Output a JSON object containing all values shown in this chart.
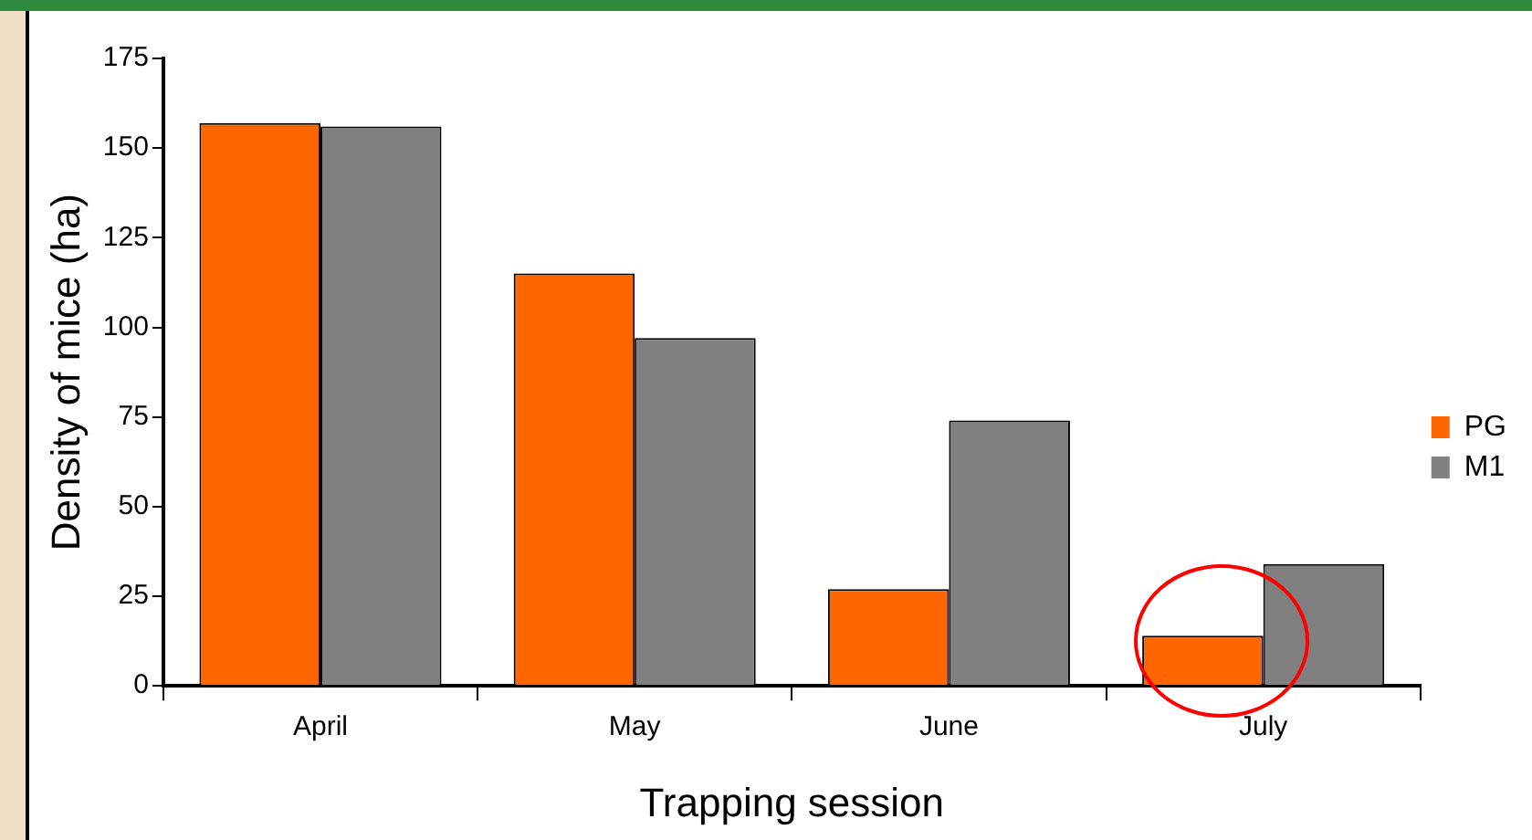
{
  "chart_data": {
    "type": "bar",
    "xlabel": "Trapping session",
    "ylabel": "Density of mice (ha)",
    "categories": [
      "April",
      "May",
      "June",
      "July"
    ],
    "series": [
      {
        "name": "PG",
        "color": "#ff6600",
        "values": [
          157,
          115,
          27,
          14
        ]
      },
      {
        "name": "M1",
        "color": "#808080",
        "values": [
          156,
          97,
          74,
          34
        ]
      }
    ],
    "ylim": [
      0,
      175
    ],
    "yticks": [
      0,
      25,
      50,
      75,
      100,
      125,
      150,
      175
    ],
    "grid": false,
    "legend": "right"
  }
}
